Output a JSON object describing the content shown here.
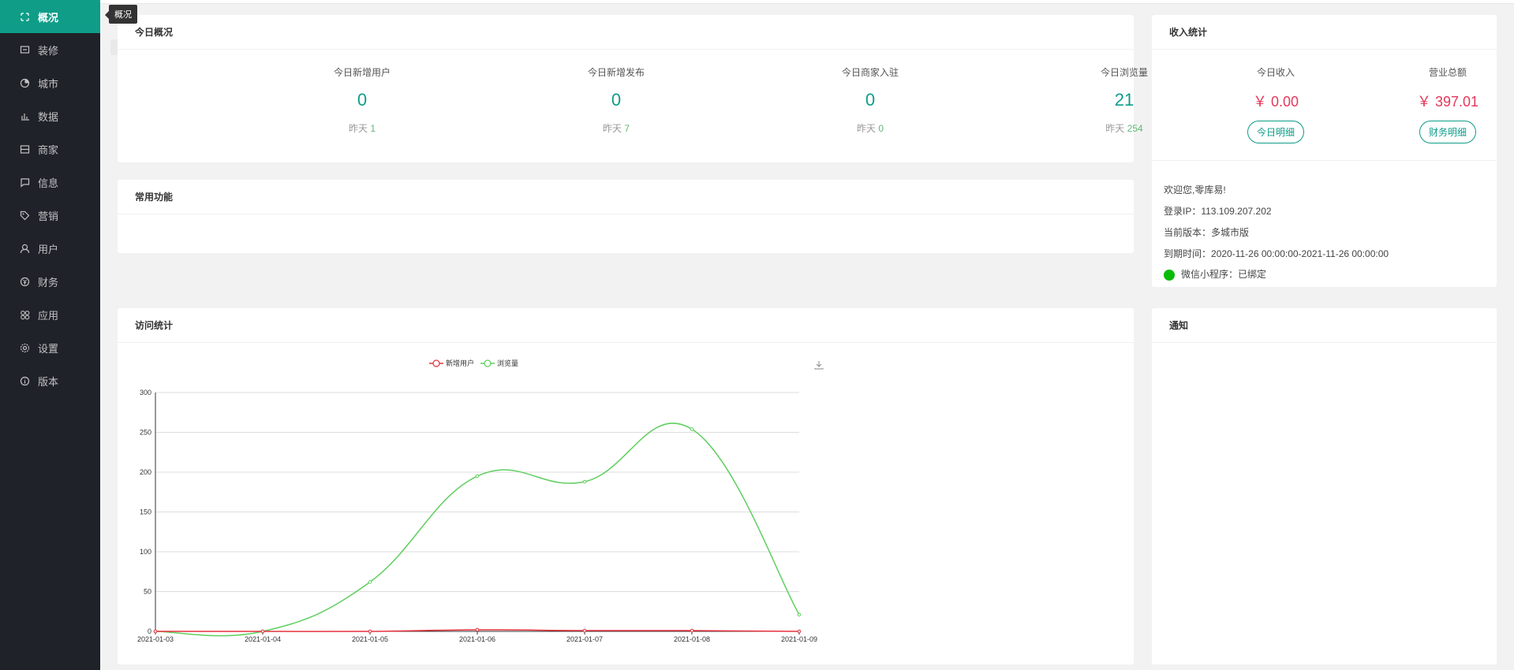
{
  "sidebar": {
    "items": [
      {
        "label": "概况",
        "icon": "overview-icon"
      },
      {
        "label": "装修",
        "icon": "decorate-icon"
      },
      {
        "label": "城市",
        "icon": "city-icon"
      },
      {
        "label": "数据",
        "icon": "data-chart-icon"
      },
      {
        "label": "商家",
        "icon": "merchant-icon"
      },
      {
        "label": "信息",
        "icon": "message-icon"
      },
      {
        "label": "营销",
        "icon": "tag-icon"
      },
      {
        "label": "用户",
        "icon": "user-icon"
      },
      {
        "label": "财务",
        "icon": "yuan-icon"
      },
      {
        "label": "应用",
        "icon": "apps-icon"
      },
      {
        "label": "设置",
        "icon": "settings-icon"
      },
      {
        "label": "版本",
        "icon": "info-icon"
      }
    ],
    "tooltip": "概况"
  },
  "today": {
    "title": "今日概况",
    "yesterday_label": "昨天",
    "stats": [
      {
        "label": "今日新增用户",
        "value": "0",
        "yesterday": "1"
      },
      {
        "label": "今日新增发布",
        "value": "0",
        "yesterday": "7"
      },
      {
        "label": "今日商家入驻",
        "value": "0",
        "yesterday": "0"
      },
      {
        "label": "今日浏览量",
        "value": "21",
        "yesterday": "254"
      }
    ]
  },
  "income": {
    "title": "收入统计",
    "today_label": "今日收入",
    "today_value": "￥ 0.00",
    "today_btn": "今日明细",
    "total_label": "营业总额",
    "total_value": "￥ 397.01",
    "total_btn": "财务明细"
  },
  "account": {
    "welcome": "欢迎您,零库易!",
    "ip_label": "登录IP：",
    "ip": "113.109.207.202",
    "version_label": "当前版本：",
    "version": "多城市版",
    "expire_label": "到期时间：",
    "expire": "2020-11-26 00:00:00-2021-11-26 00:00:00",
    "wechat_label": "微信小程序：",
    "wechat_status": "已绑定"
  },
  "common": {
    "title": "常用功能"
  },
  "visits": {
    "title": "访问统计"
  },
  "notice": {
    "title": "通知"
  },
  "chart_data": {
    "type": "line",
    "x": [
      "2021-01-03",
      "2021-01-04",
      "2021-01-05",
      "2021-01-06",
      "2021-01-07",
      "2021-01-08",
      "2021-01-09"
    ],
    "series": [
      {
        "name": "新增用户",
        "values": [
          0,
          0,
          0,
          2,
          1,
          1,
          0
        ],
        "color": "#e5323e"
      },
      {
        "name": "浏览量",
        "values": [
          0,
          0,
          62,
          195,
          188,
          254,
          21
        ],
        "color": "#5fcf5f"
      }
    ],
    "yticks": [
      "0",
      "50",
      "100",
      "150",
      "200",
      "250",
      "300"
    ],
    "ylim": [
      0,
      300
    ],
    "grid": true,
    "legend": "top-center",
    "smooth": true
  }
}
